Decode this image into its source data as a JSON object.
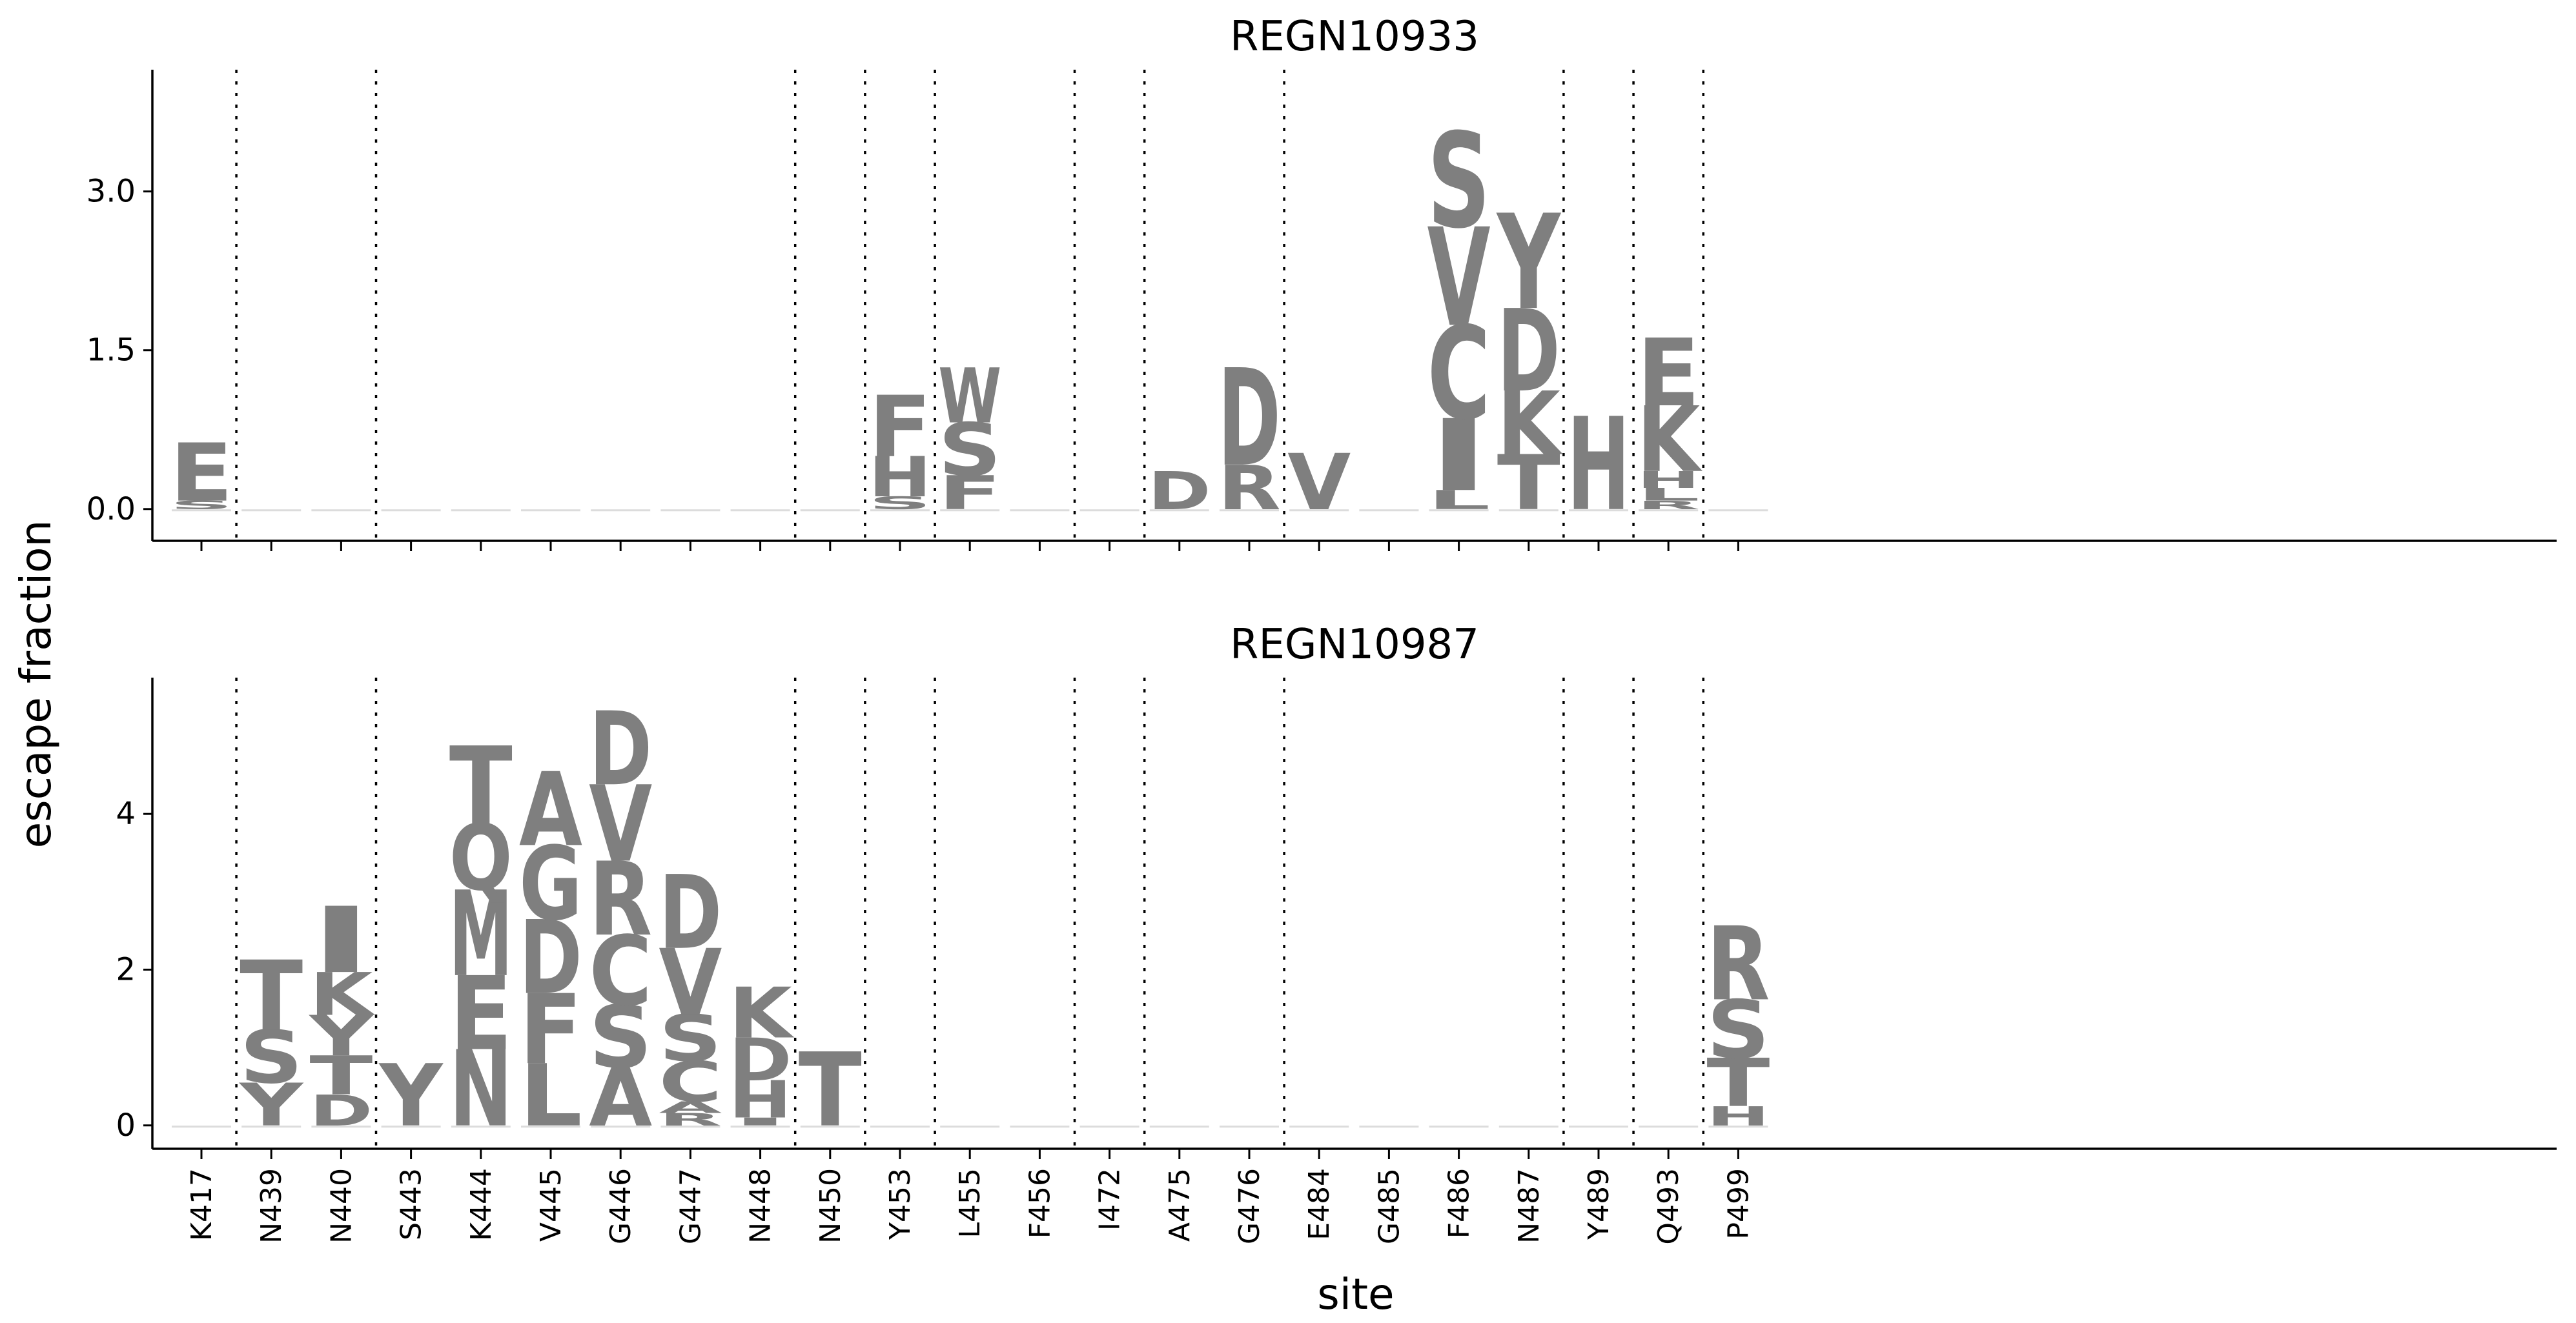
{
  "chart_data": {
    "type": "logo",
    "ylabel": "escape fraction",
    "xlabel": "site",
    "sites": [
      "K417",
      "N439",
      "N440",
      "S443",
      "K444",
      "V445",
      "G446",
      "G447",
      "N448",
      "N450",
      "Y453",
      "L455",
      "F456",
      "I472",
      "A475",
      "G476",
      "E484",
      "G485",
      "F486",
      "N487",
      "Y489",
      "Q493",
      "P499"
    ],
    "separators_after": [
      "K417",
      "N440",
      "N448",
      "N450",
      "Y453",
      "F456",
      "I472",
      "G476",
      "N487",
      "Y489",
      "Q493"
    ],
    "letter_color": "#7f7f7f",
    "panels": [
      {
        "title": "REGN10933",
        "ylim": [
          -0.3,
          4.15
        ],
        "yticks": [
          0.0,
          1.5,
          3.0
        ],
        "ytick_labels": [
          "0.0",
          "1.5",
          "3.0"
        ],
        "stacks": {
          "K417": [
            [
              "S",
              0.08
            ],
            [
              "E",
              0.55
            ]
          ],
          "N439": [],
          "N440": [],
          "S443": [],
          "K444": [],
          "V445": [],
          "G446": [],
          "G447": [],
          "N448": [],
          "N450": [],
          "Y453": [
            [
              "S",
              0.12
            ],
            [
              "H",
              0.38
            ],
            [
              "F",
              0.58
            ]
          ],
          "L455": [
            [
              "F",
              0.32
            ],
            [
              "S",
              0.5
            ],
            [
              "W",
              0.52
            ]
          ],
          "F456": [],
          "I472": [],
          "A475": [
            [
              "D",
              0.36
            ]
          ],
          "G476": [
            [
              "R",
              0.42
            ],
            [
              "D",
              0.92
            ]
          ],
          "E484": [
            [
              "V",
              0.53
            ]
          ],
          "G485": [],
          "F486": [
            [
              "L",
              0.18
            ],
            [
              "I",
              0.68
            ],
            [
              "C",
              0.88
            ],
            [
              "V",
              0.93
            ],
            [
              "S",
              0.9
            ]
          ],
          "N487": [
            [
              "T",
              0.52
            ],
            [
              "K",
              0.6
            ],
            [
              "D",
              0.78
            ],
            [
              "Y",
              0.9
            ]
          ],
          "Y489": [
            [
              "H",
              0.88
            ]
          ],
          "Q493": [
            [
              "R",
              0.08
            ],
            [
              "L",
              0.12
            ],
            [
              "H",
              0.16
            ],
            [
              "K",
              0.62
            ],
            [
              "E",
              0.64
            ]
          ],
          "P499": []
        }
      },
      {
        "title": "REGN10987",
        "ylim": [
          -0.3,
          5.75
        ],
        "yticks": [
          0,
          2,
          4
        ],
        "ytick_labels": [
          "0",
          "2",
          "4"
        ],
        "stacks": {
          "K417": [],
          "N439": [
            [
              "Y",
              0.55
            ],
            [
              "S",
              0.68
            ],
            [
              "T",
              0.9
            ]
          ],
          "N440": [
            [
              "D",
              0.4
            ],
            [
              "T",
              0.5
            ],
            [
              "Y",
              0.52
            ],
            [
              "K",
              0.55
            ],
            [
              "I",
              0.85
            ]
          ],
          "S443": [
            [
              "Y",
              0.8
            ]
          ],
          "K444": [
            [
              "N",
              0.98
            ],
            [
              "E",
              0.95
            ],
            [
              "M",
              1.1
            ],
            [
              "Q",
              0.85
            ],
            [
              "T",
              1.0
            ]
          ],
          "V445": [
            [
              "L",
              0.8
            ],
            [
              "F",
              0.9
            ],
            [
              "D",
              0.95
            ],
            [
              "G",
              0.95
            ],
            [
              "A",
              0.95
            ]
          ],
          "G446": [
            [
              "A",
              0.75
            ],
            [
              "S",
              0.8
            ],
            [
              "C",
              0.9
            ],
            [
              "R",
              0.95
            ],
            [
              "V",
              0.98
            ],
            [
              "D",
              0.95
            ]
          ],
          "G447": [
            [
              "R",
              0.16
            ],
            [
              "A",
              0.15
            ],
            [
              "C",
              0.52
            ],
            [
              "S",
              0.6
            ],
            [
              "V",
              0.85
            ],
            [
              "D",
              0.95
            ]
          ],
          "N448": [
            [
              "I",
              0.1
            ],
            [
              "H",
              0.48
            ],
            [
              "D",
              0.55
            ],
            [
              "K",
              0.65
            ]
          ],
          "N450": [
            [
              "T",
              0.95
            ]
          ],
          "Y453": [],
          "L455": [],
          "F456": [],
          "I472": [],
          "A475": [],
          "G476": [],
          "E484": [],
          "G485": [],
          "F486": [],
          "N487": [],
          "Y489": [],
          "Q493": [],
          "P499": [
            [
              "H",
              0.25
            ],
            [
              "T",
              0.62
            ],
            [
              "S",
              0.75
            ],
            [
              "R",
              0.95
            ]
          ]
        }
      }
    ]
  }
}
